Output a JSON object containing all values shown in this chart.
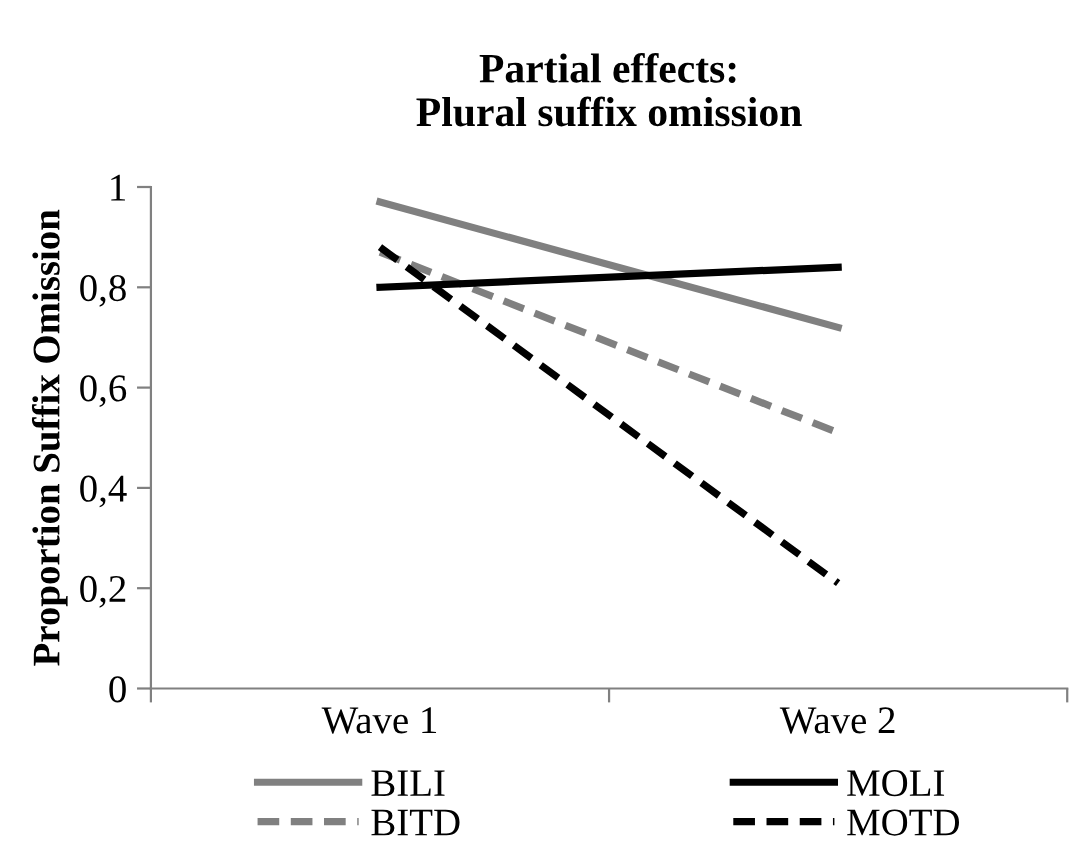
{
  "chart_data": {
    "type": "line",
    "title": "Partial effects:\nPlural suffix omission",
    "ylabel": "Proportion Suffix Omission",
    "categories": [
      "Wave 1",
      "Wave 2"
    ],
    "series": [
      {
        "name": "BILI",
        "color": "#808080",
        "line_style": "solid",
        "values": [
          0.97,
          0.72
        ]
      },
      {
        "name": "BITD",
        "color": "#808080",
        "line_style": "dashed",
        "values": [
          0.87,
          0.51
        ]
      },
      {
        "name": "MOLI",
        "color": "#000000",
        "line_style": "solid",
        "values": [
          0.8,
          0.84
        ]
      },
      {
        "name": "MOTD",
        "color": "#000000",
        "line_style": "dashed",
        "values": [
          0.88,
          0.21
        ]
      }
    ],
    "ylim": [
      0,
      1
    ],
    "yticks": [
      {
        "value": 0,
        "label": "0"
      },
      {
        "value": 0.2,
        "label": "0,2"
      },
      {
        "value": 0.4,
        "label": "0,4"
      },
      {
        "value": 0.6,
        "label": "0,6"
      },
      {
        "value": 0.8,
        "label": "0,8"
      },
      {
        "value": 1,
        "label": "1"
      }
    ],
    "grid": false,
    "legend": "bottom",
    "marker": "none"
  }
}
